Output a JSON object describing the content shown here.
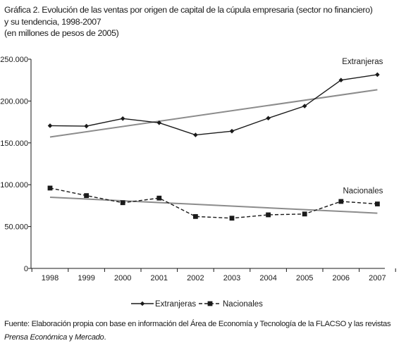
{
  "title_lines": [
    "Gráfica 2. Evolución de las ventas por origen de capital de la cúpula empresaria (sector no financiero)",
    "y su tendencia, 1998-2007",
    "(en millones de pesos de 2005)"
  ],
  "source": {
    "prefix": "Fuente: Elaboración propia con base en información del Área de Economía y Tecnología de la FLACSO y las revistas ",
    "journal1": "Prensa Económica",
    "connector": " y ",
    "journal2": "Mercado",
    "suffix": "."
  },
  "chart_data": {
    "type": "line",
    "title": "Gráfica 2. Evolución de las ventas por origen de capital de la cúpula empresaria (sector no financiero) y su tendencia, 1998-2007",
    "subtitle": "(en millones de pesos de 2005)",
    "xlabel": "",
    "ylabel": "",
    "x": [
      "1998",
      "1999",
      "2000",
      "2001",
      "2002",
      "2003",
      "2004",
      "2005",
      "2006",
      "2007"
    ],
    "ylim": [
      0,
      250000
    ],
    "yticks": [
      0,
      50000,
      100000,
      150000,
      200000,
      250000
    ],
    "ytick_labels": [
      "0",
      "50.000",
      "100.000",
      "150.000",
      "200.000",
      "250.000"
    ],
    "grid": false,
    "legend_position": "bottom",
    "series": [
      {
        "name": "Extranjeras",
        "marker": "diamond",
        "line": "solid",
        "color": "#1a1a1a",
        "values": [
          170500,
          170000,
          179000,
          174000,
          159500,
          164000,
          179500,
          194000,
          225000,
          231500
        ]
      },
      {
        "name": "Nacionales",
        "marker": "square",
        "line": "dashed",
        "color": "#1a1a1a",
        "values": [
          96000,
          87000,
          78500,
          84000,
          62000,
          60000,
          64000,
          65000,
          80000,
          77000
        ]
      }
    ],
    "trendlines": [
      {
        "series": "Extranjeras",
        "color": "#8c8c8c",
        "start": [
          1998,
          157000
        ],
        "end": [
          2007,
          213500
        ]
      },
      {
        "series": "Nacionales",
        "color": "#8c8c8c",
        "start": [
          1998,
          85000
        ],
        "end": [
          2007,
          66000
        ]
      }
    ],
    "annotations": [
      {
        "text": "Extranjeras",
        "near": "series-end",
        "series": "Extranjeras"
      },
      {
        "text": "Nacionales",
        "near": "series-end",
        "series": "Nacionales"
      }
    ]
  }
}
